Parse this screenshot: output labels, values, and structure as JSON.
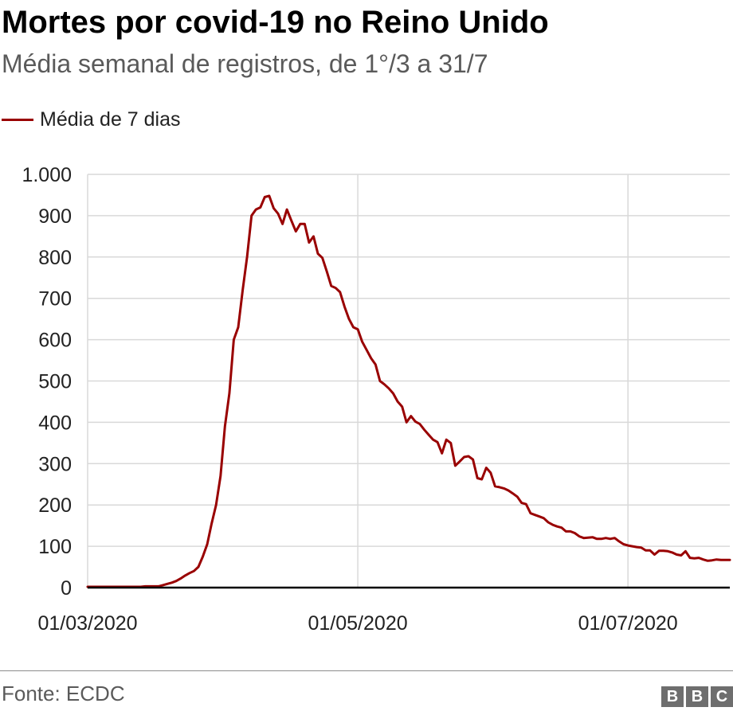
{
  "header": {
    "title": "Mortes por covid-19 no Reino Unido",
    "subtitle": "Média semanal de registros, de 1°/3 a 31/7"
  },
  "legend": {
    "label": "Média de 7 dias"
  },
  "footer": {
    "source": "Fonte: ECDC",
    "logo": [
      "B",
      "B",
      "C"
    ]
  },
  "colors": {
    "series": "#990000",
    "grid": "#d9d9d9",
    "baseline": "#000000",
    "text": "#222222"
  },
  "chart_data": {
    "type": "line",
    "x_start": "01/03/2020",
    "x_end": "31/07/2020",
    "xticks": [
      {
        "label": "01/03/2020",
        "day": 0
      },
      {
        "label": "01/05/2020",
        "day": 61
      },
      {
        "label": "01/07/2020",
        "day": 122
      }
    ],
    "ylim": [
      0,
      1000
    ],
    "yticks": [
      {
        "value": 0,
        "label": "0"
      },
      {
        "value": 100,
        "label": "100"
      },
      {
        "value": 200,
        "label": "200"
      },
      {
        "value": 300,
        "label": "300"
      },
      {
        "value": 400,
        "label": "400"
      },
      {
        "value": 500,
        "label": "500"
      },
      {
        "value": 600,
        "label": "600"
      },
      {
        "value": 700,
        "label": "700"
      },
      {
        "value": 800,
        "label": "800"
      },
      {
        "value": 900,
        "label": "900"
      },
      {
        "value": 1000,
        "label": "1.000"
      }
    ],
    "grid": true,
    "series": [
      {
        "name": "Média de 7 dias",
        "values": [
          2,
          2,
          2,
          2,
          2,
          2,
          2,
          2,
          2,
          2,
          2,
          2,
          2,
          3,
          3,
          3,
          3,
          6,
          9,
          12,
          16,
          22,
          29,
          35,
          40,
          50,
          75,
          105,
          155,
          200,
          270,
          390,
          470,
          600,
          630,
          720,
          800,
          900,
          915,
          920,
          945,
          948,
          918,
          905,
          880,
          915,
          888,
          862,
          880,
          880,
          835,
          850,
          808,
          798,
          765,
          730,
          725,
          715,
          680,
          650,
          630,
          625,
          595,
          575,
          555,
          540,
          500,
          492,
          482,
          470,
          450,
          438,
          400,
          415,
          402,
          396,
          382,
          370,
          358,
          352,
          325,
          358,
          350,
          295,
          305,
          316,
          318,
          310,
          265,
          262,
          290,
          278,
          245,
          243,
          240,
          235,
          228,
          220,
          205,
          202,
          180,
          176,
          172,
          168,
          158,
          152,
          148,
          145,
          136,
          136,
          132,
          124,
          120,
          121,
          122,
          118,
          118,
          120,
          118,
          120,
          112,
          105,
          102,
          100,
          98,
          97,
          90,
          90,
          80,
          89,
          89,
          88,
          85,
          80,
          78,
          88,
          72,
          71,
          72,
          68,
          65,
          66,
          68,
          67,
          67,
          67
        ]
      }
    ]
  }
}
